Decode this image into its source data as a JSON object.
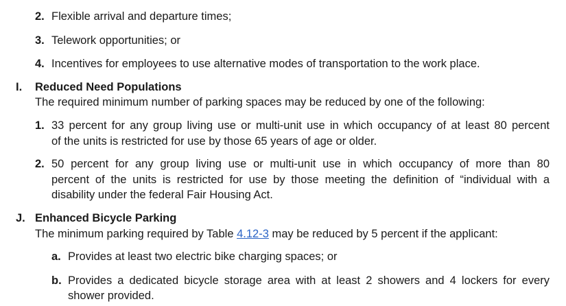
{
  "list_top": [
    {
      "num": "2.",
      "text": "Flexible arrival and departure times;"
    },
    {
      "num": "3.",
      "text": "Telework opportunities; or"
    },
    {
      "num": "4.",
      "text": "Incentives for employees to use alternative modes of transportation to the work place."
    }
  ],
  "section_i": {
    "letter": "I.",
    "title": "Reduced Need Populations",
    "intro": "The required minimum number of parking spaces may be reduced by one of the following:",
    "items": [
      {
        "num": "1.",
        "line1": "33 percent for any group living use or multi-unit use in which occupancy of at least 80 percent",
        "line2": "of the units is restricted for use by those 65 years of age or older."
      },
      {
        "num": "2.",
        "line1": "50 percent for any group living use or multi-unit use in which occupancy of more than 80",
        "line2": "percent of the units is restricted for use by those meeting the definition of “individual with a",
        "line3": "disability under the federal Fair Housing Act."
      }
    ]
  },
  "section_j": {
    "letter": "J.",
    "title": "Enhanced Bicycle Parking",
    "intro_before": "The minimum parking required by Table ",
    "intro_link": "4.12-3",
    "intro_after": " may be reduced by 5 percent if the applicant:",
    "items": [
      {
        "num": "a.",
        "line1": "Provides at least two electric bike charging spaces; or"
      },
      {
        "num": "b.",
        "line1": "Provides a dedicated bicycle storage area with at least 2 showers and 4 lockers for every",
        "line2": "shower provided."
      }
    ]
  }
}
